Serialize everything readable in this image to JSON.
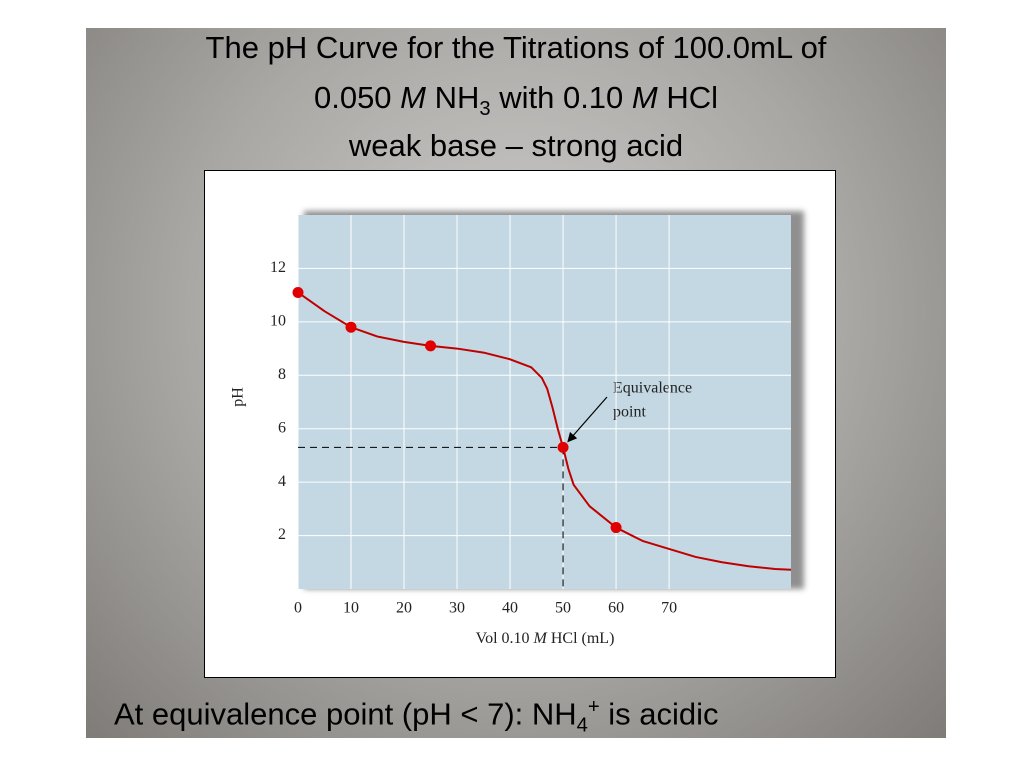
{
  "slide": {
    "title_line1": "The pH Curve for the Titrations of 100.0mL of",
    "title_line2": [
      "0.050 ",
      "M",
      " NH",
      "3",
      " with 0.10 ",
      "M",
      " HCl"
    ],
    "title_line3": "weak base – strong acid",
    "footer": [
      "At equivalence point (pH < 7): NH",
      "4",
      "+",
      " is acidic"
    ]
  },
  "chart_data": {
    "type": "line",
    "x_label": [
      "Vol 0.10 ",
      "M",
      " HCl (mL)"
    ],
    "y_label": "pH",
    "x": [
      0,
      5,
      10,
      15,
      20,
      25,
      30,
      35,
      40,
      44,
      46,
      47,
      48,
      49,
      50,
      51,
      52,
      55,
      60,
      65,
      70,
      75,
      80,
      85,
      90,
      93
    ],
    "series": [
      {
        "color": "#c00000",
        "values": [
          11.1,
          10.4,
          9.8,
          9.45,
          9.25,
          9.1,
          9.0,
          8.85,
          8.6,
          8.3,
          7.9,
          7.5,
          6.8,
          6.0,
          5.3,
          4.5,
          3.9,
          3.1,
          2.3,
          1.8,
          1.5,
          1.2,
          1.0,
          0.85,
          0.75,
          0.72
        ]
      }
    ],
    "points": {
      "color": "#e00000",
      "x": [
        0,
        10,
        25,
        50,
        60
      ],
      "values": [
        11.1,
        9.8,
        9.1,
        5.3,
        2.3
      ]
    },
    "annotation": [
      "Equivalence",
      "point"
    ],
    "xlim": [
      0,
      93
    ],
    "ylim": [
      0,
      14
    ],
    "xticks": [
      0,
      10,
      20,
      30,
      40,
      50,
      60,
      70
    ],
    "yticks": [
      2,
      4,
      6,
      8,
      10,
      12
    ],
    "grid": true
  }
}
